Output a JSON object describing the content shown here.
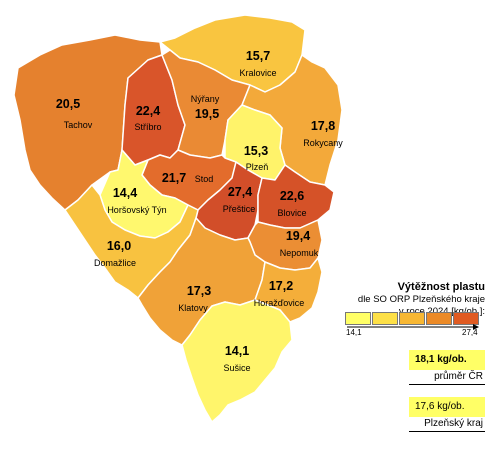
{
  "legend": {
    "title": "Výtěžnost plastu",
    "subtitle_line1": "dle SO ORP Plzeňského kraje",
    "subtitle_line2": "v roce 2024 [kg/ob.]:",
    "scale_min": "14,1",
    "scale_max": "27,4",
    "scale_colors": [
      "#ffff66",
      "#fde047",
      "#f7b733",
      "#eb8a27",
      "#e05b22"
    ],
    "avg_cr_value": "18,1 kg/ob.",
    "avg_cr_label": "průměr ČR",
    "avg_kraj_value": "17,6 kg/ob.",
    "avg_kraj_label": "Plzeňský kraj",
    "box_color": "#ffff66"
  },
  "regions": {
    "tachov": {
      "name": "Tachov",
      "value": "20,5",
      "color": "#e5812e"
    },
    "stribro": {
      "name": "Stříbro",
      "value": "22,4",
      "color": "#d9552a"
    },
    "nyrany": {
      "name": "Nýřany",
      "value": "19,5",
      "color": "#ea8a34"
    },
    "kralovice": {
      "name": "Kralovice",
      "value": "15,7",
      "color": "#f9c540"
    },
    "rokycany": {
      "name": "Rokycany",
      "value": "17,8",
      "color": "#f3a93a"
    },
    "plzen": {
      "name": "Plzeň",
      "value": "15,3",
      "color": "#fff36a"
    },
    "stod": {
      "name": "Stod",
      "value": "21,7",
      "color": "#e36c2c"
    },
    "horsovsky": {
      "name": "Horšovský Týn",
      "value": "14,4",
      "color": "#fff86e"
    },
    "prestice": {
      "name": "Přeštice",
      "value": "27,4",
      "color": "#d24e29"
    },
    "blovice": {
      "name": "Blovice",
      "value": "22,6",
      "color": "#d55228"
    },
    "domazlice": {
      "name": "Domažlice",
      "value": "16,0",
      "color": "#f8c240"
    },
    "nepomuk": {
      "name": "Nepomuk",
      "value": "19,4",
      "color": "#eb8e34"
    },
    "klatovy": {
      "name": "Klatovy",
      "value": "17,3",
      "color": "#f0a238"
    },
    "horazdovice": {
      "name": "Horažďovice",
      "value": "17,2",
      "color": "#f4ae3a"
    },
    "susice": {
      "name": "Sušice",
      "value": "14,1",
      "color": "#fff56b"
    }
  }
}
